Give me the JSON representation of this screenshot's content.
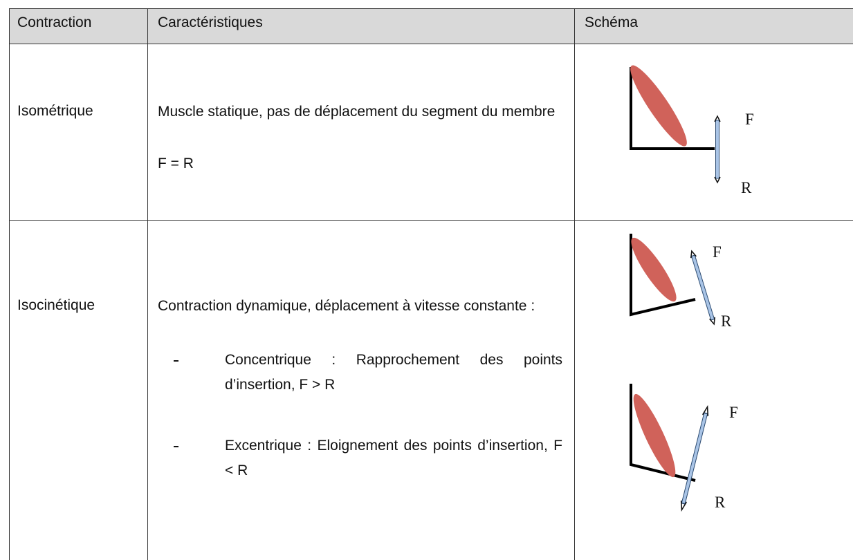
{
  "table": {
    "header": [
      "Contraction",
      "Caractéristiques",
      "Schéma"
    ],
    "rows": [
      {
        "name": "Isométrique",
        "text": "Muscle statique, pas de déplacement du segment du membre",
        "formula": "F = R",
        "diagrams": [
          {
            "force": "F",
            "resistance": "R"
          }
        ]
      },
      {
        "name": "Isocinétique",
        "text": "Contraction dynamique, déplacement à vitesse constante :",
        "items": [
          "Concentrique : Rapprochement des points d’insertion, F > R",
          "Excentrique : Eloignement des points d’insertion, F < R"
        ],
        "diagrams": [
          {
            "force": "F",
            "resistance": "R"
          },
          {
            "force": "F",
            "resistance": "R"
          }
        ]
      }
    ]
  }
}
